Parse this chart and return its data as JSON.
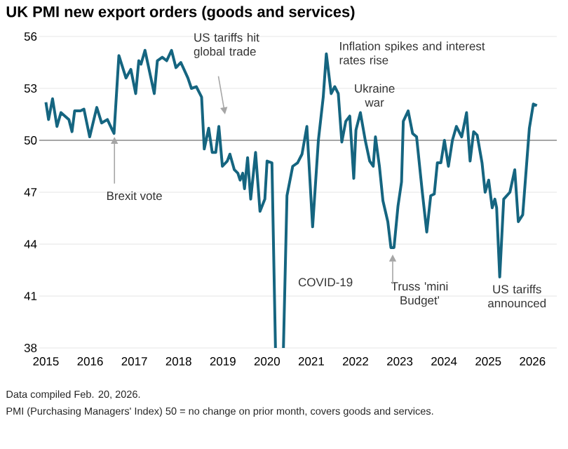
{
  "chart_data": {
    "type": "line",
    "title": "UK PMI new export orders (goods and services)",
    "x": [
      2015.0,
      2015.06,
      2015.15,
      2015.25,
      2015.34,
      2015.52,
      2015.59,
      2015.65,
      2015.78,
      2015.86,
      2015.99,
      2016.15,
      2016.26,
      2016.39,
      2016.5,
      2016.54,
      2016.65,
      2016.81,
      2016.92,
      2017.03,
      2017.1,
      2017.15,
      2017.24,
      2017.45,
      2017.52,
      2017.63,
      2017.73,
      2017.84,
      2017.94,
      2018.05,
      2018.21,
      2018.29,
      2018.4,
      2018.52,
      2018.58,
      2018.68,
      2018.76,
      2018.84,
      2018.91,
      2018.99,
      2019.1,
      2019.16,
      2019.26,
      2019.34,
      2019.39,
      2019.45,
      2019.49,
      2019.56,
      2019.63,
      2019.74,
      2019.84,
      2019.95,
      2020.0,
      2020.11,
      2020.19,
      2020.27,
      2020.37,
      2020.45,
      2020.58,
      2020.69,
      2020.79,
      2020.9,
      2021.03,
      2021.16,
      2021.27,
      2021.34,
      2021.45,
      2021.53,
      2021.61,
      2021.69,
      2021.78,
      2021.87,
      2021.96,
      2022.01,
      2022.11,
      2022.22,
      2022.32,
      2022.4,
      2022.45,
      2022.54,
      2022.62,
      2022.73,
      2022.8,
      2022.87,
      2022.96,
      2023.04,
      2023.08,
      2023.19,
      2023.29,
      2023.38,
      2023.51,
      2023.61,
      2023.7,
      2023.78,
      2023.85,
      2023.93,
      2024.01,
      2024.1,
      2024.19,
      2024.28,
      2024.4,
      2024.51,
      2024.59,
      2024.67,
      2024.75,
      2024.86,
      2024.93,
      2025.01,
      2025.09,
      2025.15,
      2025.19,
      2025.26,
      2025.35,
      2025.49,
      2025.6,
      2025.68,
      2025.78,
      2025.93,
      2026.02,
      2026.1
    ],
    "series": [
      {
        "color": "#156580",
        "values": [
          52.2,
          51.2,
          52.4,
          50.8,
          51.6,
          51.2,
          50.5,
          51.7,
          51.7,
          51.8,
          50.2,
          51.9,
          51.0,
          51.2,
          50.6,
          50.4,
          54.9,
          53.6,
          54.1,
          52.7,
          54.6,
          54.4,
          55.2,
          52.7,
          54.6,
          54.8,
          54.6,
          55.2,
          54.2,
          54.5,
          53.6,
          53.0,
          53.1,
          52.5,
          49.5,
          50.7,
          49.3,
          49.3,
          50.8,
          48.5,
          48.8,
          49.2,
          48.3,
          48.1,
          47.7,
          48.1,
          47.2,
          49.0,
          46.6,
          49.3,
          45.9,
          46.6,
          48.8,
          48.7,
          38,
          null,
          38,
          46.8,
          48.5,
          48.7,
          49.2,
          50.8,
          45.0,
          50.0,
          52.5,
          55.0,
          52.7,
          53.1,
          52.7,
          49.9,
          51.1,
          51.4,
          47.8,
          50.6,
          51.6,
          50.0,
          48.8,
          48.5,
          50.2,
          48.5,
          46.5,
          45.3,
          43.8,
          43.8,
          46.2,
          47.6,
          51.1,
          51.7,
          50.4,
          50.2,
          47.0,
          44.7,
          46.8,
          46.9,
          48.7,
          48.7,
          50.0,
          48.5,
          50.0,
          50.8,
          50.2,
          51.6,
          48.8,
          50.5,
          50.3,
          48.7,
          47.0,
          47.7,
          46.1,
          46.6,
          46.1,
          42.1,
          46.6,
          47.0,
          48.3,
          45.3,
          45.7,
          50.7,
          52.1,
          52.0
        ]
      }
    ],
    "xlim": [
      2014.85,
      2026.55
    ],
    "xticks": [
      2015,
      2016,
      2017,
      2018,
      2019,
      2020,
      2021,
      2022,
      2023,
      2024,
      2025,
      2026
    ],
    "ylim": [
      38,
      56
    ],
    "yticks": [
      38,
      41,
      44,
      47,
      50,
      53,
      56
    ],
    "grid": "y",
    "ref_lines": [
      {
        "axis": "y",
        "value": 50,
        "color": "#a6a6a6"
      }
    ],
    "annotations": [
      {
        "text": "Brexit vote",
        "x": 2016.55,
        "y": 50.2
      },
      "US tariffs hit global trade",
      "COVID-19",
      "Inflation spikes and interest rates rise",
      "Ukraine war",
      {
        "text": "Truss 'mini Budget'",
        "x": 2022.84,
        "y": 43.4
      },
      "US tariffs announced",
      "Data compiled Feb. 20, 2026.",
      "PMI (Purchasing Managers' Index) 50 = no change on prior month, covers goods and services."
    ]
  }
}
